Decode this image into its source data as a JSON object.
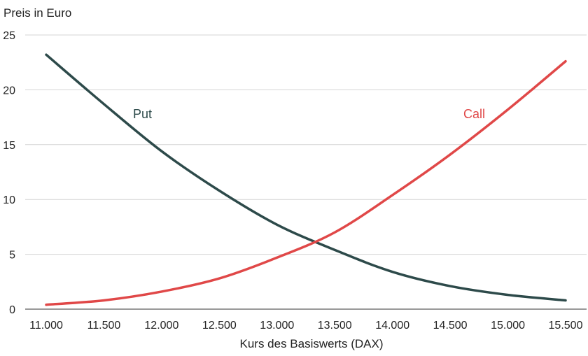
{
  "chart_data": {
    "type": "line",
    "ylabel": "Preis in Euro",
    "xlabel": "Kurs des Basiswerts (DAX)",
    "x": [
      11000,
      11500,
      12000,
      12500,
      13000,
      13500,
      14000,
      14500,
      15000,
      15500
    ],
    "x_tick_labels": [
      "11.000",
      "11.500",
      "12.000",
      "12.500",
      "13.000",
      "13.500",
      "14.000",
      "14.500",
      "15.000",
      "15.500"
    ],
    "y_ticks": [
      0,
      5,
      10,
      15,
      20,
      25
    ],
    "y_tick_labels": [
      "0",
      "5",
      "10",
      "15",
      "20",
      "25"
    ],
    "xlim": [
      11000,
      15500
    ],
    "ylim": [
      0,
      25
    ],
    "grid": true,
    "series": [
      {
        "name": "Put",
        "color": "#2d4a4a",
        "values": [
          23.2,
          18.7,
          14.4,
          10.8,
          7.7,
          5.4,
          3.4,
          2.1,
          1.3,
          0.8
        ]
      },
      {
        "name": "Call",
        "color": "#e04848",
        "values": [
          0.4,
          0.8,
          1.6,
          2.8,
          4.7,
          7.0,
          10.4,
          14.1,
          18.2,
          22.6
        ]
      }
    ]
  }
}
